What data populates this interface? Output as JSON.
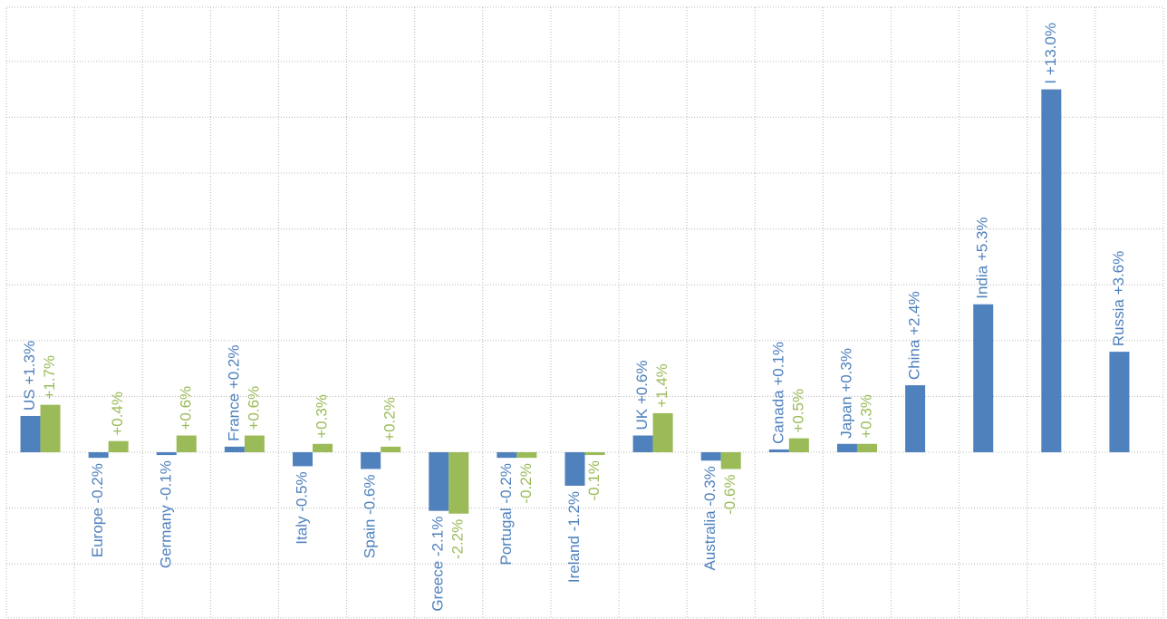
{
  "chart_data": {
    "type": "bar",
    "title": "",
    "xlabel": "",
    "ylabel": "",
    "ylim": [
      -3,
      7
    ],
    "grid": true,
    "legend": "none",
    "colors": {
      "series1": "#4f81bd",
      "series2": "#9bbb59"
    },
    "categories": [
      "US",
      "Europe",
      "Germany",
      "France",
      "Italy",
      "Spain",
      "Greece",
      "Portugal",
      "Ireland",
      "UK",
      "Australia",
      "Canada",
      "Japan",
      "China",
      "India",
      "I",
      "Russia"
    ],
    "series": [
      {
        "values": [
          0.65,
          -0.1,
          -0.05,
          0.1,
          -0.25,
          -0.3,
          -1.05,
          -0.1,
          -0.6,
          0.3,
          -0.15,
          0.05,
          0.15,
          1.2,
          2.65,
          6.5,
          1.8
        ]
      },
      {
        "values": [
          0.85,
          0.2,
          0.3,
          0.3,
          0.15,
          0.1,
          -1.1,
          -0.1,
          -0.05,
          0.7,
          -0.3,
          0.25,
          0.15,
          null,
          null,
          null,
          null
        ]
      }
    ],
    "labels1": [
      "US +1.3%",
      "Europe -0.2%",
      "Germany -0.1%",
      "France +0.2%",
      "Italy -0.5%",
      "Spain -0.6%",
      "Greece -2.1%",
      "Portugal -0.2%",
      "Ireland -1.2%",
      "UK +0.6%",
      "Australia -0.3%",
      "Canada +0.1%",
      "Japan +0.3%",
      "China +2.4%",
      "India +5.3%",
      "I +13.0%",
      "Russia +3.6%"
    ],
    "labels2": [
      "+1.7%",
      "+0.4%",
      "+0.6%",
      "+0.6%",
      "+0.3%",
      "+0.2%",
      "-2.2%",
      "-0.2%",
      "-0.1%",
      "+1.4%",
      "-0.6%",
      "+0.5%",
      "+0.3%",
      "",
      "",
      "",
      ""
    ]
  }
}
